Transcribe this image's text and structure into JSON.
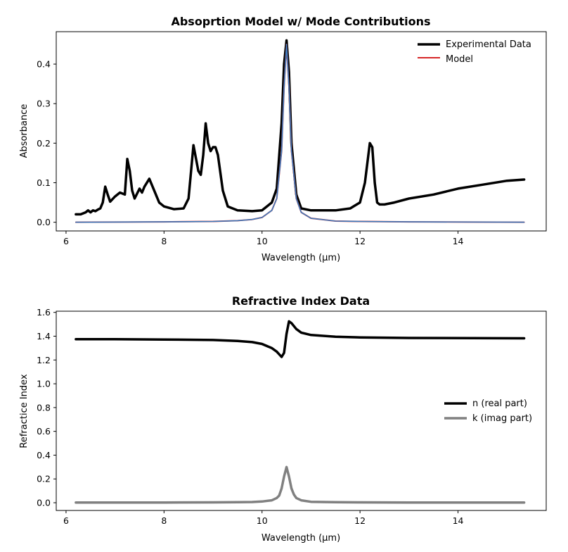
{
  "chart_data": [
    {
      "type": "line",
      "title": "Absoprtion Model w/ Mode Contributions",
      "xlabel": "Wavelength (μm)",
      "ylabel": "Absorbance",
      "xlim": [
        5.8,
        15.8
      ],
      "ylim": [
        -0.022,
        0.482
      ],
      "xticks": [
        6,
        8,
        10,
        12,
        14
      ],
      "yticks": [
        0.0,
        0.1,
        0.2,
        0.3,
        0.4
      ],
      "xtick_labels": [
        "6",
        "8",
        "10",
        "12",
        "14"
      ],
      "ytick_labels": [
        "0.0",
        "0.1",
        "0.2",
        "0.3",
        "0.4"
      ],
      "legend_position": "top-right",
      "series": [
        {
          "name": "Experimental Data",
          "color": "#000000",
          "x": [
            6.2,
            6.3,
            6.4,
            6.45,
            6.5,
            6.55,
            6.6,
            6.65,
            6.7,
            6.75,
            6.8,
            6.85,
            6.9,
            7.0,
            7.1,
            7.2,
            7.25,
            7.3,
            7.35,
            7.4,
            7.5,
            7.55,
            7.6,
            7.7,
            7.8,
            7.9,
            8.0,
            8.2,
            8.4,
            8.5,
            8.6,
            8.7,
            8.75,
            8.8,
            8.85,
            8.9,
            8.95,
            9.0,
            9.05,
            9.1,
            9.2,
            9.3,
            9.5,
            9.8,
            10.0,
            10.2,
            10.3,
            10.4,
            10.45,
            10.5,
            10.55,
            10.6,
            10.7,
            10.8,
            11.0,
            11.5,
            11.8,
            12.0,
            12.1,
            12.2,
            12.25,
            12.3,
            12.35,
            12.4,
            12.5,
            12.7,
            13.0,
            13.5,
            14.0,
            14.5,
            15.0,
            15.35
          ],
          "y": [
            0.02,
            0.02,
            0.025,
            0.03,
            0.025,
            0.03,
            0.028,
            0.032,
            0.035,
            0.05,
            0.09,
            0.07,
            0.052,
            0.065,
            0.075,
            0.07,
            0.16,
            0.13,
            0.08,
            0.06,
            0.085,
            0.075,
            0.09,
            0.11,
            0.08,
            0.05,
            0.04,
            0.033,
            0.035,
            0.06,
            0.195,
            0.13,
            0.12,
            0.17,
            0.25,
            0.2,
            0.18,
            0.19,
            0.19,
            0.17,
            0.08,
            0.04,
            0.03,
            0.028,
            0.03,
            0.05,
            0.085,
            0.25,
            0.4,
            0.46,
            0.38,
            0.2,
            0.07,
            0.035,
            0.03,
            0.03,
            0.035,
            0.05,
            0.1,
            0.2,
            0.19,
            0.1,
            0.05,
            0.045,
            0.045,
            0.05,
            0.06,
            0.07,
            0.085,
            0.095,
            0.105,
            0.108
          ]
        },
        {
          "name": "Model",
          "color": "#d62728",
          "x": [
            6.2,
            8.0,
            9.0,
            9.5,
            9.8,
            10.0,
            10.2,
            10.3,
            10.4,
            10.45,
            10.5,
            10.55,
            10.6,
            10.7,
            10.8,
            11.0,
            11.5,
            12.0,
            13.0,
            15.35
          ],
          "y": [
            0.0,
            0.001,
            0.002,
            0.004,
            0.007,
            0.012,
            0.03,
            0.06,
            0.18,
            0.34,
            0.45,
            0.34,
            0.18,
            0.06,
            0.025,
            0.01,
            0.003,
            0.002,
            0.001,
            0.0
          ]
        },
        {
          "name": "",
          "color": "#3a7dc0",
          "x": [
            6.2,
            8.0,
            9.0,
            9.5,
            9.8,
            10.0,
            10.2,
            10.3,
            10.4,
            10.45,
            10.5,
            10.55,
            10.6,
            10.7,
            10.8,
            11.0,
            11.5,
            12.0,
            13.0,
            15.35
          ],
          "y": [
            0.0,
            0.001,
            0.002,
            0.004,
            0.007,
            0.012,
            0.03,
            0.06,
            0.18,
            0.34,
            0.45,
            0.34,
            0.18,
            0.06,
            0.025,
            0.01,
            0.003,
            0.002,
            0.001,
            0.0
          ]
        }
      ]
    },
    {
      "type": "line",
      "title": "Refractive Index Data",
      "xlabel": "Wavelength (μm)",
      "ylabel": "Refractice Index",
      "xlim": [
        5.8,
        15.8
      ],
      "ylim": [
        -0.065,
        1.61
      ],
      "xticks": [
        6,
        8,
        10,
        12,
        14
      ],
      "yticks": [
        0.0,
        0.2,
        0.4,
        0.6,
        0.8,
        1.0,
        1.2,
        1.4,
        1.6
      ],
      "xtick_labels": [
        "6",
        "8",
        "10",
        "12",
        "14"
      ],
      "ytick_labels": [
        "0.0",
        "0.2",
        "0.4",
        "0.6",
        "0.8",
        "1.0",
        "1.2",
        "1.4",
        "1.6"
      ],
      "legend_position": "center-right",
      "series": [
        {
          "name": "n (real part)",
          "color": "#000000",
          "x": [
            6.2,
            7.0,
            8.0,
            9.0,
            9.5,
            9.8,
            10.0,
            10.2,
            10.3,
            10.4,
            10.45,
            10.5,
            10.55,
            10.6,
            10.7,
            10.8,
            11.0,
            11.5,
            12.0,
            13.0,
            15.35
          ],
          "y": [
            1.375,
            1.375,
            1.372,
            1.368,
            1.36,
            1.35,
            1.335,
            1.3,
            1.27,
            1.225,
            1.26,
            1.42,
            1.525,
            1.51,
            1.46,
            1.43,
            1.41,
            1.395,
            1.39,
            1.385,
            1.382
          ]
        },
        {
          "name": "k (imag part)",
          "color": "#808080",
          "x": [
            6.2,
            8.0,
            9.0,
            9.5,
            9.8,
            10.0,
            10.2,
            10.3,
            10.35,
            10.4,
            10.45,
            10.5,
            10.55,
            10.6,
            10.65,
            10.7,
            10.8,
            11.0,
            11.5,
            12.0,
            13.0,
            15.35
          ],
          "y": [
            0.002,
            0.002,
            0.003,
            0.004,
            0.006,
            0.01,
            0.02,
            0.04,
            0.06,
            0.12,
            0.22,
            0.3,
            0.22,
            0.12,
            0.07,
            0.04,
            0.02,
            0.008,
            0.004,
            0.003,
            0.002,
            0.002
          ]
        }
      ]
    }
  ]
}
